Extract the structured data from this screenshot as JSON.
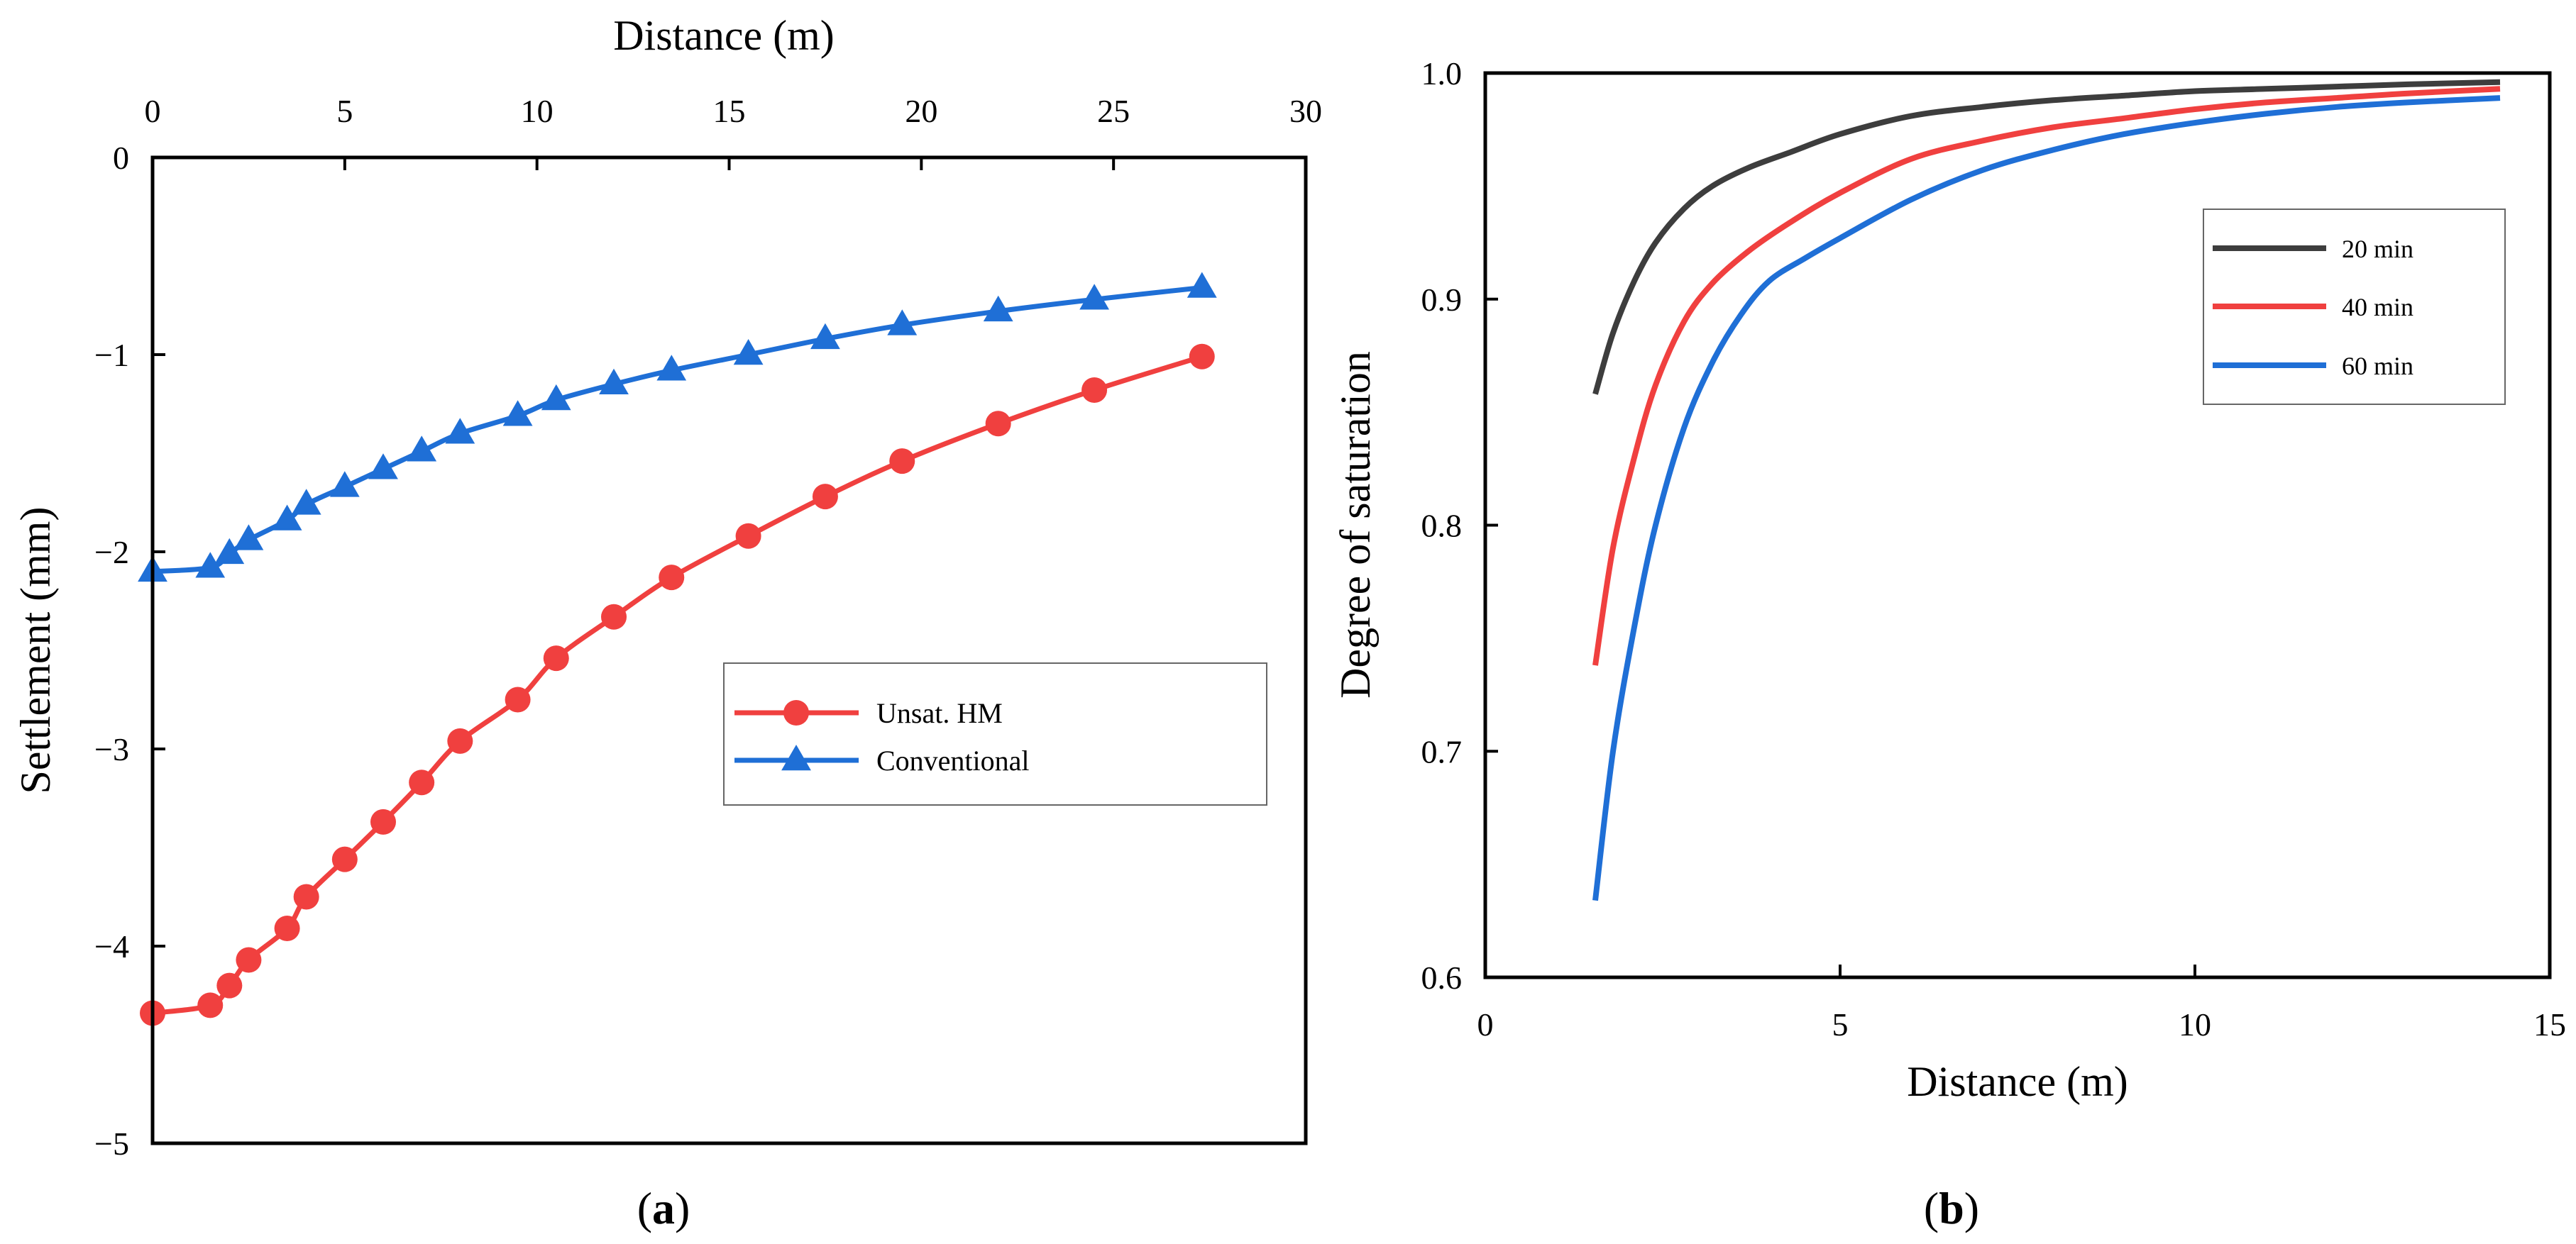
{
  "chart_data": [
    {
      "panel": "a",
      "panel_label": "a",
      "type": "line",
      "xlabel": "Distance (m)",
      "ylabel": "Settlement (mm)",
      "x_axis_position": "top",
      "xlim": [
        0,
        30
      ],
      "ylim": [
        -5,
        0
      ],
      "xticks": [
        0,
        5,
        10,
        15,
        20,
        25,
        30
      ],
      "yticks": [
        0,
        -1,
        -2,
        -3,
        -4,
        -5
      ],
      "legend_position": "center-right",
      "series": [
        {
          "name": "Unsat. HM",
          "color": "#f0403f",
          "marker": "circle",
          "x": [
            0,
            1.5,
            2,
            2.5,
            3.5,
            4,
            5,
            6,
            7,
            8,
            9.5,
            10.5,
            12,
            13.5,
            15.5,
            17.5,
            19.5,
            22,
            24.5,
            27.3
          ],
          "y": [
            -4.34,
            -4.3,
            -4.2,
            -4.07,
            -3.91,
            -3.75,
            -3.56,
            -3.37,
            -3.17,
            -2.96,
            -2.75,
            -2.54,
            -2.33,
            -2.13,
            -1.92,
            -1.72,
            -1.54,
            -1.35,
            -1.18,
            -1.01
          ]
        },
        {
          "name": "Conventional",
          "color": "#1f6fd6",
          "marker": "triangle",
          "x": [
            0,
            1.5,
            2,
            2.5,
            3.5,
            4,
            5,
            6,
            7,
            8,
            9.5,
            10.5,
            12,
            13.5,
            15.5,
            17.5,
            19.5,
            22,
            24.5,
            27.3
          ],
          "y": [
            -2.1,
            -2.08,
            -2.01,
            -1.94,
            -1.84,
            -1.76,
            -1.67,
            -1.58,
            -1.49,
            -1.4,
            -1.31,
            -1.23,
            -1.15,
            -1.08,
            -1.0,
            -0.92,
            -0.85,
            -0.78,
            -0.72,
            -0.66
          ]
        }
      ]
    },
    {
      "panel": "b",
      "panel_label": "b",
      "type": "line",
      "xlabel": "Distance (m)",
      "ylabel": "Degree of saturation",
      "x_axis_position": "bottom",
      "xlim": [
        0,
        15
      ],
      "ylim": [
        0.6,
        1.0
      ],
      "xticks": [
        0,
        5,
        10,
        15
      ],
      "yticks": [
        0.6,
        0.7,
        0.8,
        0.9,
        1.0
      ],
      "legend_position": "top-right",
      "series": [
        {
          "name": "20 min",
          "color": "#3d3d3d",
          "x": [
            1.55,
            1.8,
            2.1,
            2.4,
            2.8,
            3.2,
            3.7,
            4.3,
            5,
            6,
            7,
            8,
            9,
            10,
            11,
            12,
            13,
            14.3
          ],
          "y": [
            0.858,
            0.885,
            0.908,
            0.925,
            0.94,
            0.95,
            0.958,
            0.965,
            0.973,
            0.981,
            0.985,
            0.988,
            0.99,
            0.992,
            0.993,
            0.994,
            0.995,
            0.996
          ]
        },
        {
          "name": "40 min",
          "color": "#f0403f",
          "x": [
            1.55,
            1.8,
            2.1,
            2.4,
            2.8,
            3.2,
            3.7,
            4.3,
            5,
            6,
            7,
            8,
            9,
            10,
            11,
            12,
            13,
            14.3
          ],
          "y": [
            0.738,
            0.79,
            0.83,
            0.862,
            0.89,
            0.907,
            0.921,
            0.934,
            0.947,
            0.962,
            0.97,
            0.976,
            0.98,
            0.984,
            0.987,
            0.989,
            0.991,
            0.993
          ]
        },
        {
          "name": "60 min",
          "color": "#1f6fd6",
          "x": [
            1.55,
            1.8,
            2.1,
            2.4,
            2.8,
            3.2,
            3.6,
            4.0,
            4.5,
            5,
            6,
            7,
            8,
            9,
            10,
            11,
            12,
            13,
            14.3
          ],
          "y": [
            0.634,
            0.7,
            0.755,
            0.8,
            0.843,
            0.872,
            0.893,
            0.908,
            0.918,
            0.927,
            0.944,
            0.957,
            0.966,
            0.973,
            0.978,
            0.982,
            0.985,
            0.987,
            0.989
          ]
        }
      ]
    }
  ]
}
